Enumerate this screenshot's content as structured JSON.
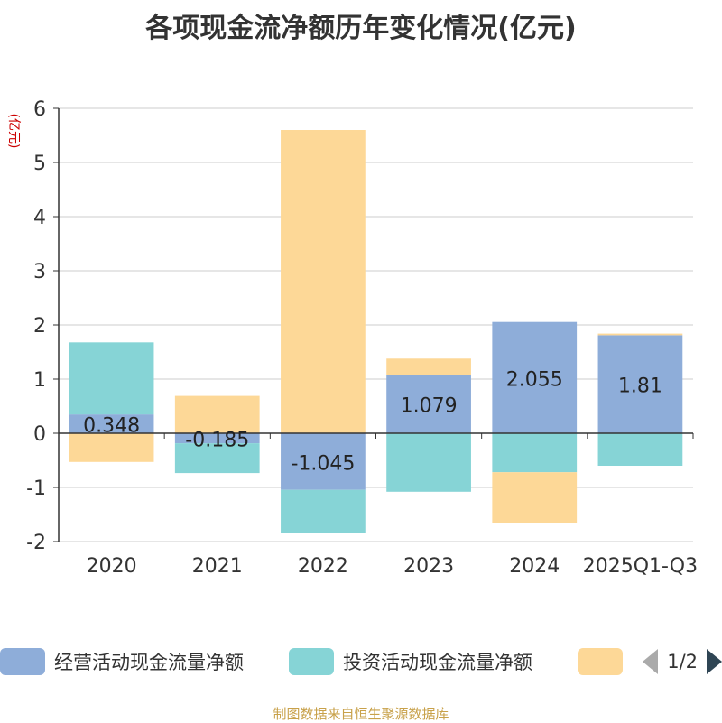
{
  "chart_data": {
    "type": "bar",
    "stacked": true,
    "title": "各项现金流净额历年变化情况(亿元)",
    "ylabel": "(亿元)",
    "ylim": [
      -2,
      6
    ],
    "yticks": [
      -2,
      -1,
      0,
      1,
      2,
      3,
      4,
      5,
      6
    ],
    "grid": true,
    "legend_position": "bottom",
    "categories": [
      "2020",
      "2021",
      "2022",
      "2023",
      "2024",
      "2025Q1-Q3"
    ],
    "series": [
      {
        "name": "经营活动现金流量净额",
        "color": "#8eadd9",
        "values": [
          0.348,
          -0.185,
          -1.045,
          1.079,
          2.055,
          1.81
        ],
        "show_labels": true
      },
      {
        "name": "投资活动现金流量净额",
        "color": "#86d4d6",
        "values": [
          1.33,
          -0.55,
          -0.8,
          -1.08,
          -0.72,
          -0.6
        ],
        "show_labels": false
      },
      {
        "name": "",
        "color": "#fdd897",
        "values": [
          -0.53,
          0.69,
          5.6,
          0.3,
          -0.93,
          0.03
        ],
        "show_labels": false
      }
    ]
  },
  "legend": {
    "page": "1/2"
  },
  "source_note": "制图数据来自恒生聚源数据库"
}
